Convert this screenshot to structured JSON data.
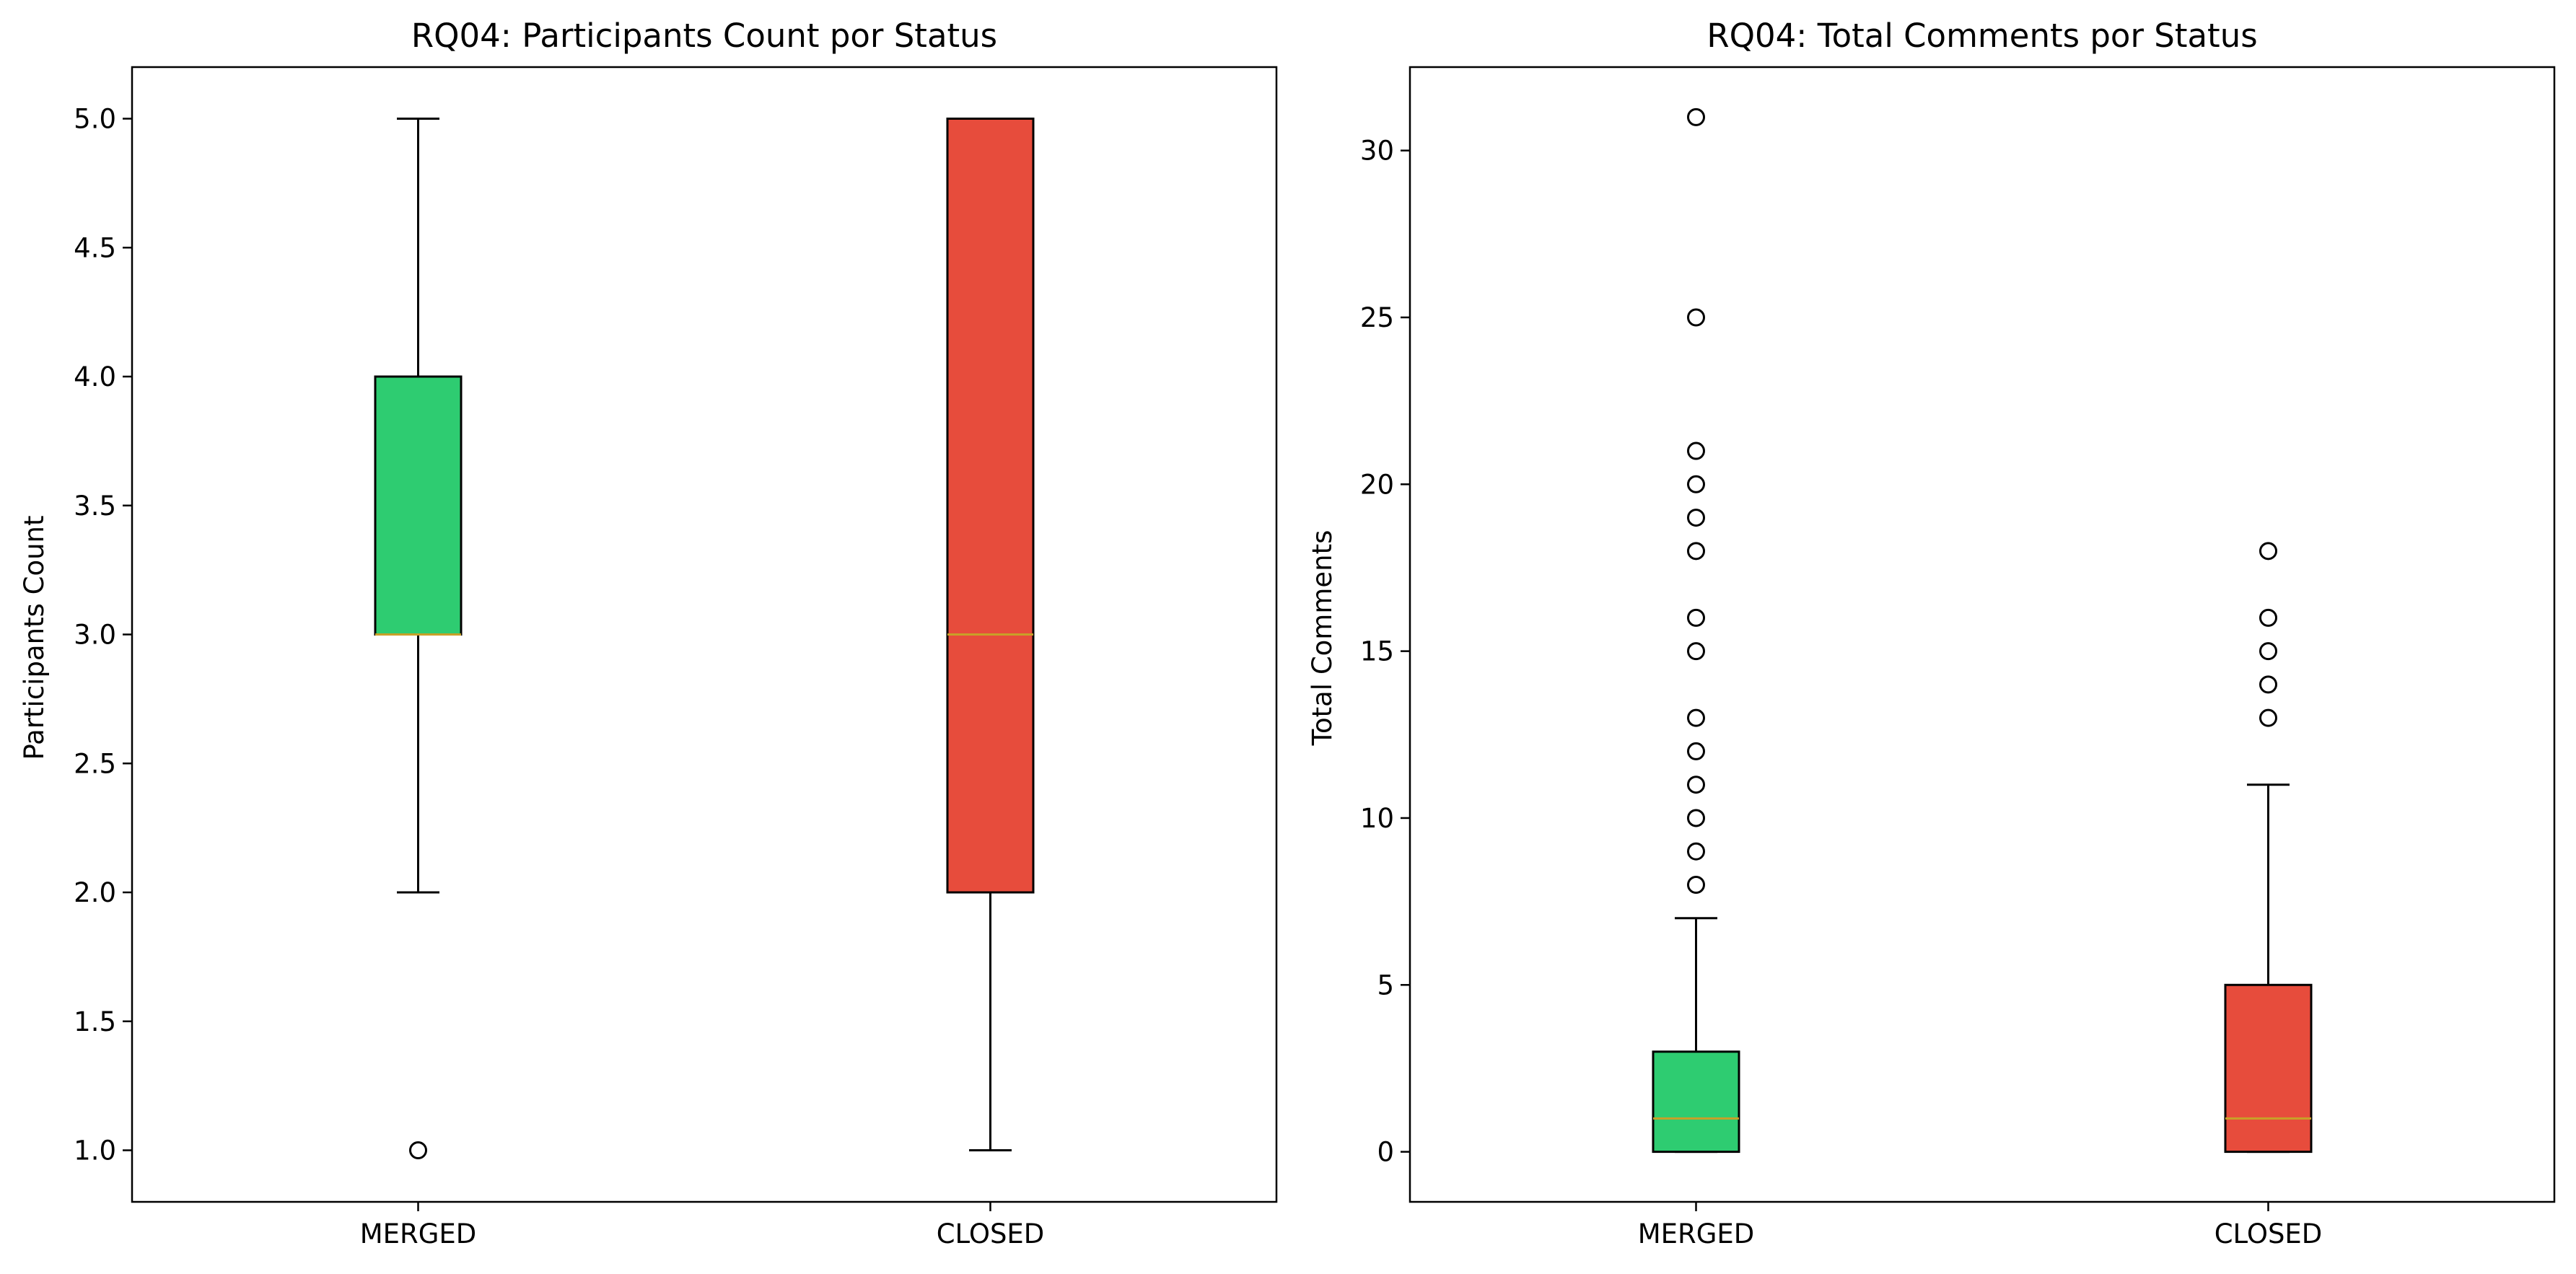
{
  "colors": {
    "merged": "#2ecc71",
    "closed": "#e74c3c",
    "median": "#c8a028",
    "line": "#000000"
  },
  "chart_data": [
    {
      "type": "box",
      "title": "RQ04: Participants Count por Status",
      "ylabel": "Participants Count",
      "xlabel": "",
      "categories": [
        "MERGED",
        "CLOSED"
      ],
      "ylim": [
        0.8,
        5.2
      ],
      "yticks": [
        "1.0",
        "1.5",
        "2.0",
        "2.5",
        "3.0",
        "3.5",
        "4.0",
        "4.5",
        "5.0"
      ],
      "grid": false,
      "boxes": [
        {
          "category": "MERGED",
          "whisker_low": 2,
          "q1": 3,
          "median": 3,
          "q3": 4,
          "whisker_high": 5,
          "outliers": [
            1
          ],
          "color": "#2ecc71"
        },
        {
          "category": "CLOSED",
          "whisker_low": 1,
          "q1": 2,
          "median": 3,
          "q3": 5,
          "whisker_high": 5,
          "outliers": [],
          "color": "#e74c3c"
        }
      ]
    },
    {
      "type": "box",
      "title": "RQ04: Total Comments por Status",
      "ylabel": "Total Comments",
      "xlabel": "",
      "categories": [
        "MERGED",
        "CLOSED"
      ],
      "ylim": [
        -1.5,
        32.5
      ],
      "yticks": [
        "0",
        "5",
        "10",
        "15",
        "20",
        "25",
        "30"
      ],
      "grid": false,
      "boxes": [
        {
          "category": "MERGED",
          "whisker_low": 0,
          "q1": 0,
          "median": 1,
          "q3": 3,
          "whisker_high": 7,
          "outliers": [
            8,
            9,
            10,
            11,
            12,
            13,
            15,
            16,
            18,
            19,
            20,
            21,
            25,
            31
          ],
          "color": "#2ecc71"
        },
        {
          "category": "CLOSED",
          "whisker_low": 0,
          "q1": 0,
          "median": 1,
          "q3": 5,
          "whisker_high": 11,
          "outliers": [
            13,
            14,
            15,
            16,
            18
          ],
          "color": "#e74c3c"
        }
      ]
    }
  ]
}
